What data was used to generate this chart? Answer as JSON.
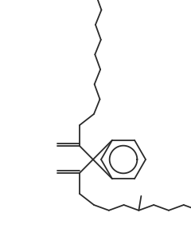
{
  "bg_color": "#ffffff",
  "line_color": "#2a2a2a",
  "line_width": 1.3,
  "fig_width": 2.4,
  "fig_height": 3.06,
  "dpi": 100
}
